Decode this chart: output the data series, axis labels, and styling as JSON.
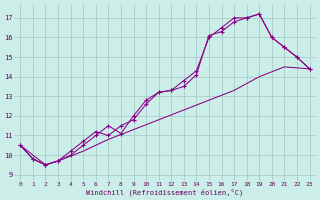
{
  "bg_color": "#cceee8",
  "grid_color": "#aacccc",
  "line_color": "#880088",
  "xlabel": "Windchill (Refroidissement éolien,°C)",
  "xlim": [
    -0.5,
    23.5
  ],
  "ylim": [
    8.7,
    17.7
  ],
  "xticks": [
    0,
    1,
    2,
    3,
    4,
    5,
    6,
    7,
    8,
    9,
    10,
    11,
    12,
    13,
    14,
    15,
    16,
    17,
    18,
    19,
    20,
    21,
    22,
    23
  ],
  "yticks": [
    9,
    10,
    11,
    12,
    13,
    14,
    15,
    16,
    17
  ],
  "line1_x": [
    0,
    1,
    2,
    3,
    4,
    5,
    6,
    7,
    8,
    9,
    10,
    11,
    12,
    13,
    14,
    15,
    16,
    17,
    18,
    19,
    20,
    21,
    22,
    23
  ],
  "line1_y": [
    10.5,
    9.8,
    9.5,
    9.7,
    10.0,
    10.5,
    11.0,
    11.5,
    11.1,
    12.0,
    12.8,
    13.2,
    13.3,
    13.8,
    14.3,
    16.0,
    16.5,
    17.0,
    17.0,
    17.2,
    16.0,
    15.5,
    15.0,
    14.4
  ],
  "line2_x": [
    0,
    1,
    2,
    3,
    4,
    5,
    6,
    7,
    8,
    9,
    10,
    11,
    12,
    13,
    14,
    15,
    16,
    17,
    18,
    19,
    20,
    21,
    22,
    23
  ],
  "line2_y": [
    10.5,
    9.8,
    9.5,
    9.7,
    10.2,
    10.7,
    11.2,
    11.0,
    11.5,
    11.8,
    12.6,
    13.2,
    13.3,
    13.5,
    14.1,
    16.1,
    16.3,
    16.8,
    17.0,
    17.2,
    16.0,
    15.5,
    15.0,
    14.4
  ],
  "line3_x": [
    0,
    2,
    3,
    5,
    7,
    9,
    11,
    13,
    15,
    17,
    19,
    21,
    23
  ],
  "line3_y": [
    10.5,
    9.5,
    9.7,
    10.2,
    10.8,
    11.3,
    11.8,
    12.3,
    12.8,
    13.3,
    14.0,
    14.5,
    14.4
  ]
}
